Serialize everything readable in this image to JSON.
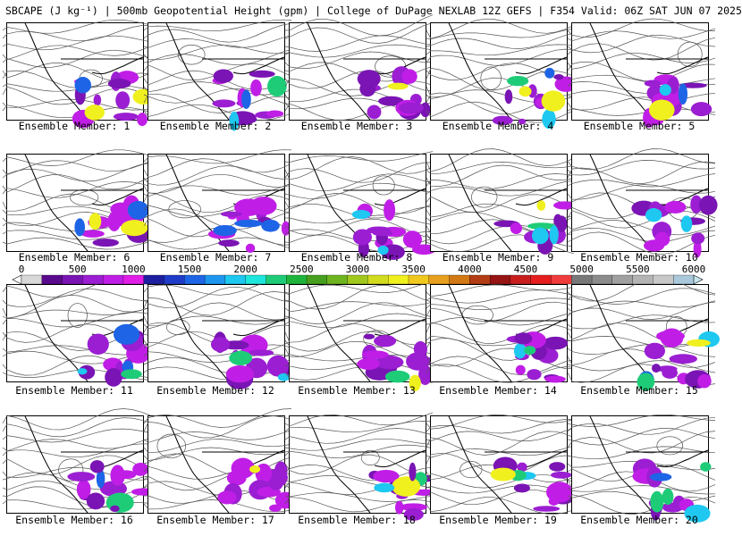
{
  "title": "SBCAPE (J kg⁻¹) | 500mb Geopotential Height (gpm) | College of DuPage NEXLAB 12Z GEFS | F354 Valid: 06Z SAT JUN 07 2025",
  "colorbar": {
    "ticks": [
      "0",
      "500",
      "1000",
      "1500",
      "2000",
      "2500",
      "3000",
      "3500",
      "4000",
      "4500",
      "5000",
      "5500",
      "6000"
    ],
    "colors": [
      "#ffffff",
      "#d8d8d8",
      "#5a0a8c",
      "#7a14b4",
      "#9b1ed2",
      "#c01ee6",
      "#e01ee6",
      "#1e1ea0",
      "#1e3cc8",
      "#1e64e6",
      "#1e96f0",
      "#1ec8f0",
      "#1ee6dc",
      "#1ecc78",
      "#1eb43c",
      "#46a01e",
      "#6eb41e",
      "#a0c81e",
      "#d2dc1e",
      "#f0f01e",
      "#f0c81e",
      "#e6a01e",
      "#d27814",
      "#b43c14",
      "#961414",
      "#c81e1e",
      "#e61e1e",
      "#f03c3c",
      "#787878",
      "#8c8c8c",
      "#a0a0a0",
      "#b4b4b4",
      "#c8c8c8",
      "#aac8dc",
      "#c8e6f0"
    ]
  },
  "members": [
    {
      "label": "Ensemble Member: 1"
    },
    {
      "label": "Ensemble Member: 2"
    },
    {
      "label": "Ensemble Member: 3"
    },
    {
      "label": "Ensemble Member: 4"
    },
    {
      "label": "Ensemble Member: 5"
    },
    {
      "label": "Ensemble Member: 6"
    },
    {
      "label": "Ensemble Member: 7"
    },
    {
      "label": "Ensemble Member: 8"
    },
    {
      "label": "Ensemble Member: 9"
    },
    {
      "label": "Ensemble Member: 10"
    },
    {
      "label": "Ensemble Member: 11"
    },
    {
      "label": "Ensemble Member: 12"
    },
    {
      "label": "Ensemble Member: 13"
    },
    {
      "label": "Ensemble Member: 14"
    },
    {
      "label": "Ensemble Member: 15"
    },
    {
      "label": "Ensemble Member: 16"
    },
    {
      "label": "Ensemble Member: 17"
    },
    {
      "label": "Ensemble Member: 18"
    },
    {
      "label": "Ensemble Member: 19"
    },
    {
      "label": "Ensemble Member: 20"
    }
  ]
}
